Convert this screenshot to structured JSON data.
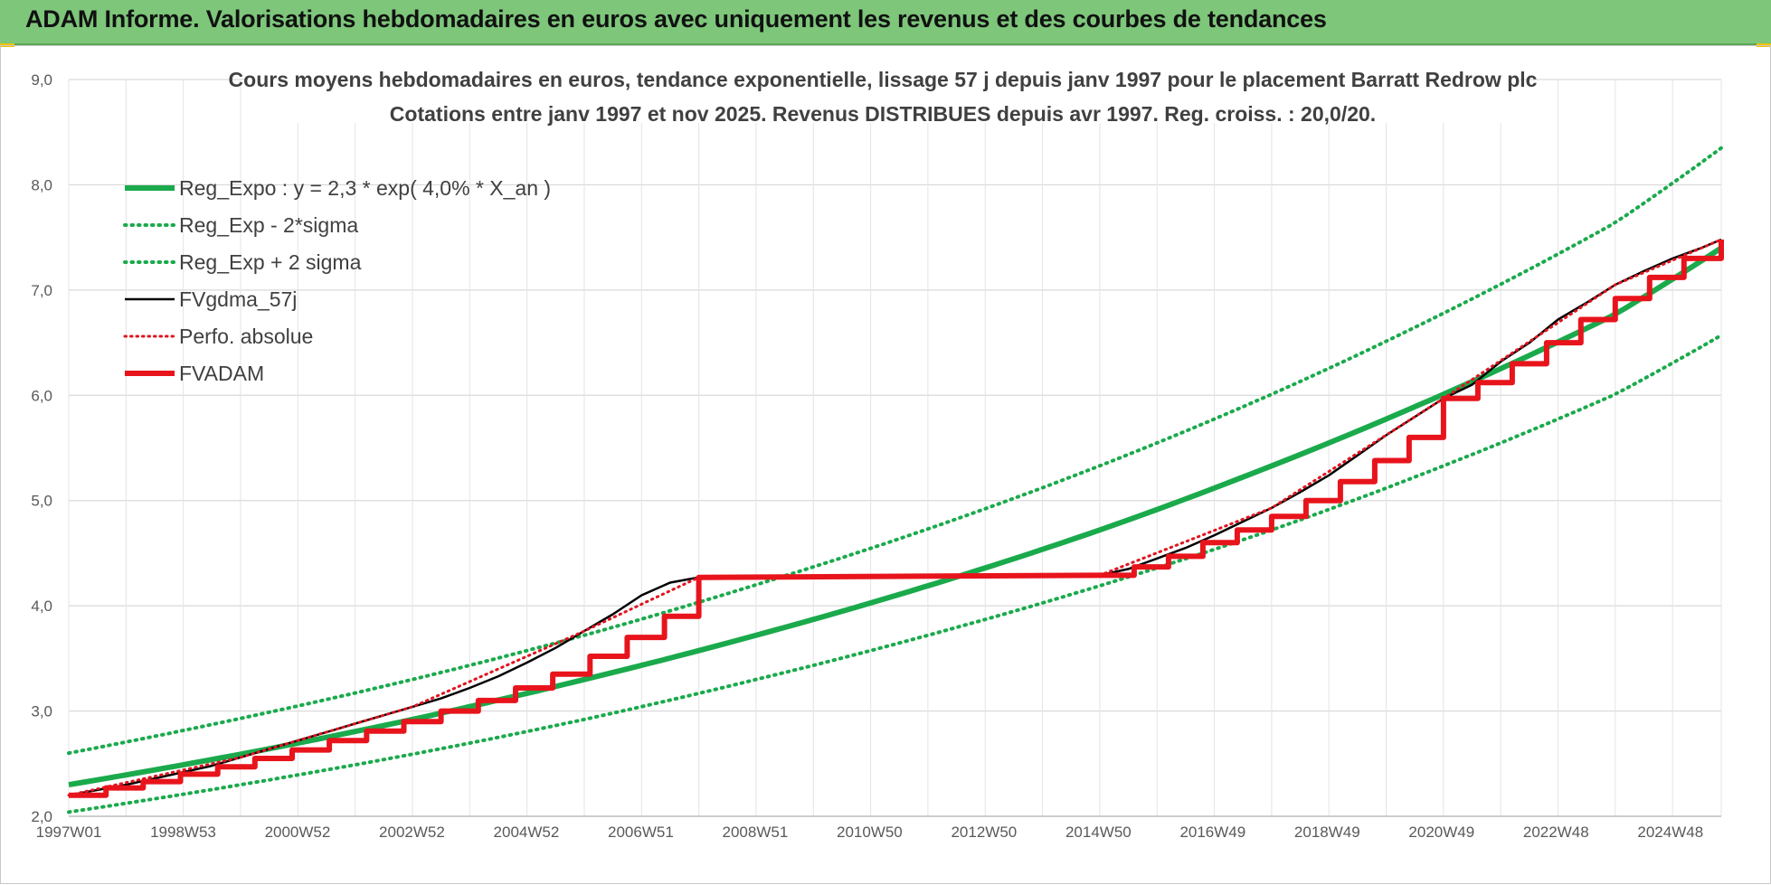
{
  "banner": {
    "title": "ADAM Informe. Valorisations hebdomadaires en euros avec uniquement les revenus et des courbes de tendances"
  },
  "colors": {
    "banner_bg": "#7dc67a",
    "reg": "#1aaa4c",
    "fvgdma": "#000000",
    "perfo": "#e0141e",
    "fvadam": "#e8141c",
    "grid": "#d9d9d9",
    "accent_yellow": "#f2c200"
  },
  "chart_data": {
    "type": "line",
    "title": "Cours moyens hebdomadaires en euros, tendance exponentielle, lissage 57 j depuis janv 1997 pour le placement Barratt Redrow plc",
    "subtitle": "Cotations entre janv 1997 et nov 2025. Revenus DISTRIBUES depuis avr 1997. Reg. croiss. : 20,0/20.",
    "xlabel": "",
    "ylabel": "",
    "ylim": [
      2.0,
      9.0
    ],
    "yticks": [
      "2,0",
      "3,0",
      "4,0",
      "5,0",
      "6,0",
      "7,0",
      "8,0",
      "9,0"
    ],
    "x_range_years": [
      1997.0,
      2025.85
    ],
    "x_tick_labels": [
      "1997W01",
      "1998W53",
      "2000W52",
      "2002W52",
      "2004W52",
      "2006W51",
      "2008W51",
      "2010W50",
      "2012W50",
      "2014W50",
      "2016W49",
      "2018W49",
      "2020W49",
      "2022W48",
      "2024W48"
    ],
    "grid": true,
    "legend_position": "top-left",
    "series": [
      {
        "name": "Reg_Expo : y = 2,3 * exp( 4,0% *  X_an )",
        "style": "solid",
        "x": [
          1997,
          2000,
          2003,
          2006,
          2009,
          2012,
          2015,
          2018,
          2021,
          2024,
          2025.85
        ],
        "y": [
          2.3,
          2.59,
          2.92,
          3.3,
          3.72,
          4.19,
          4.72,
          5.33,
          6.01,
          6.77,
          7.4
        ]
      },
      {
        "name": "Reg_Exp - 2*sigma",
        "style": "dotted",
        "x": [
          1997,
          2000,
          2003,
          2006,
          2009,
          2012,
          2015,
          2018,
          2021,
          2024,
          2025.85
        ],
        "y": [
          2.04,
          2.3,
          2.59,
          2.92,
          3.3,
          3.72,
          4.19,
          4.72,
          5.33,
          6.01,
          6.57
        ]
      },
      {
        "name": "Reg_Exp + 2 sigma",
        "style": "dotted",
        "x": [
          1997,
          2000,
          2003,
          2006,
          2009,
          2012,
          2015,
          2018,
          2021,
          2024,
          2025.85
        ],
        "y": [
          2.6,
          2.93,
          3.3,
          3.72,
          4.2,
          4.73,
          5.33,
          6.01,
          6.78,
          7.64,
          8.35
        ]
      },
      {
        "name": "FVgdma_57j",
        "style": "solid",
        "x": [
          1997,
          1997.5,
          1998,
          1998.5,
          1999,
          1999.5,
          2000,
          2000.5,
          2001,
          2001.5,
          2002,
          2002.5,
          2003,
          2003.5,
          2004,
          2004.5,
          2005,
          2005.5,
          2006,
          2006.5,
          2007,
          2007.5,
          2008,
          2012,
          2015,
          2015.5,
          2016,
          2016.5,
          2017,
          2017.5,
          2018,
          2018.5,
          2019,
          2019.5,
          2020,
          2021,
          2021.5,
          2022,
          2022.5,
          2023,
          2023.5,
          2024,
          2024.5,
          2025,
          2025.5,
          2025.85
        ],
        "y": [
          2.2,
          2.25,
          2.3,
          2.36,
          2.42,
          2.48,
          2.56,
          2.64,
          2.72,
          2.8,
          2.88,
          2.96,
          3.04,
          3.12,
          3.22,
          3.33,
          3.46,
          3.6,
          3.76,
          3.92,
          4.1,
          4.22,
          4.27,
          4.28,
          4.29,
          4.35,
          4.45,
          4.55,
          4.67,
          4.8,
          4.93,
          5.08,
          5.24,
          5.43,
          5.62,
          5.97,
          6.1,
          6.32,
          6.5,
          6.72,
          6.88,
          7.05,
          7.18,
          7.3,
          7.4,
          7.48
        ]
      },
      {
        "name": "Perfo. absolue",
        "style": "dotted",
        "x": [
          1997,
          2000,
          2003,
          2006,
          2008,
          2012,
          2015,
          2018,
          2021,
          2024,
          2025.85
        ],
        "y": [
          2.2,
          2.56,
          3.04,
          3.76,
          4.27,
          4.28,
          4.29,
          4.93,
          5.97,
          7.05,
          7.48
        ]
      },
      {
        "name": "FVADAM",
        "style": "step",
        "x": [
          1997,
          1997.65,
          1998.3,
          1998.95,
          1999.6,
          2000.25,
          2000.9,
          2001.55,
          2002.2,
          2002.85,
          2003.5,
          2004.15,
          2004.8,
          2005.45,
          2006.1,
          2006.75,
          2007.4,
          2008.0,
          2015.0,
          2015.6,
          2016.2,
          2016.8,
          2017.4,
          2018.0,
          2018.6,
          2019.2,
          2019.8,
          2020.4,
          2021.0,
          2021.6,
          2022.2,
          2022.8,
          2023.4,
          2024.0,
          2024.6,
          2025.2,
          2025.85
        ],
        "y": [
          2.2,
          2.27,
          2.33,
          2.4,
          2.47,
          2.55,
          2.63,
          2.72,
          2.81,
          2.9,
          3.0,
          3.1,
          3.22,
          3.35,
          3.52,
          3.7,
          3.9,
          4.27,
          4.29,
          4.37,
          4.47,
          4.6,
          4.72,
          4.85,
          5.0,
          5.18,
          5.38,
          5.6,
          5.97,
          6.12,
          6.3,
          6.5,
          6.72,
          6.92,
          7.12,
          7.3,
          7.48
        ]
      }
    ]
  }
}
